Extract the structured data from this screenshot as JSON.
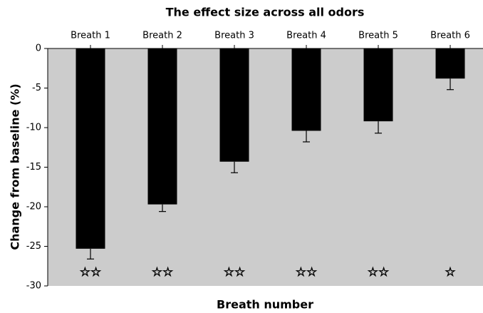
{
  "chart_data": {
    "type": "bar",
    "title": "The effect size across all odors",
    "x_label": "Breath number",
    "y_label": "Change from baseline (%)",
    "categories": [
      "Breath 1",
      "Breath 2",
      "Breath 3",
      "Breath 4",
      "Breath 5",
      "Breath 6"
    ],
    "values": [
      -25.3,
      -19.7,
      -14.3,
      -10.4,
      -9.2,
      -3.8
    ],
    "errors": [
      1.3,
      0.9,
      1.4,
      1.4,
      1.5,
      1.4
    ],
    "annotations": [
      "☆☆",
      "☆☆",
      "☆☆",
      "☆☆",
      "☆☆",
      "☆"
    ],
    "color": "#000000",
    "plot_background": "#cccccc",
    "ylim": [
      -30,
      0
    ],
    "yticks": [
      0,
      -5,
      -10,
      -15,
      -20,
      -25,
      -30
    ]
  }
}
